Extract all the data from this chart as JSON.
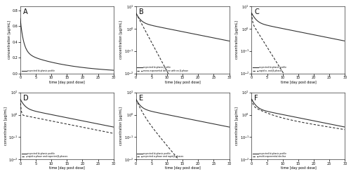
{
  "panels": [
    "A",
    "B",
    "C",
    "D",
    "E",
    "F"
  ],
  "t_max": 30,
  "xlabel": "time [day post dose]",
  "ylabel": "concentration [µg/mL]",
  "line_color": "#333333",
  "background": "#ffffff",
  "panel_params": {
    "A": {
      "title": "A",
      "ylog": false,
      "ylim": [
        0.0,
        0.85
      ],
      "yticks": [
        0.0,
        0.2,
        0.4,
        0.6,
        0.8
      ],
      "solid": {
        "Cl": 6.0,
        "V1": 40,
        "V2": 45,
        "Q": 18,
        "dose": 1,
        "scale": 0.033
      },
      "dashed": null,
      "legend": [
        "expected bi-phasic profile"
      ],
      "legend_loc": "lower left"
    },
    "B": {
      "title": "B",
      "ylog": true,
      "ylim_log": [
        -2,
        1
      ],
      "solid": {
        "Cl": 6.0,
        "V1": 40,
        "V2": 45,
        "Q": 18,
        "dose": 1,
        "scale": 1.0
      },
      "dashed": {
        "Cl": 6.0,
        "V1": 40,
        "V2": 0,
        "Q": 0,
        "dose": 1,
        "scale": 1.0,
        "mono": true,
        "mono_k": 0.8
      },
      "legend": [
        "expected bi-phasic profile",
        "mono-exponential decline with no β-phase"
      ],
      "legend_loc": "lower left"
    },
    "C": {
      "title": "C",
      "ylog": true,
      "ylim_log": [
        -2,
        1
      ],
      "solid": {
        "Cl": 6.0,
        "V1": 40,
        "V2": 45,
        "Q": 18,
        "dose": 1,
        "scale": 1.0
      },
      "dashed": {
        "Cl": 6.0,
        "V1": 40,
        "V2": 45,
        "Q": 18,
        "dose": 1,
        "scale": 1.0,
        "alpha_fast": 4.0,
        "beta_fast": 0.8
      },
      "legend": [
        "expected bi-phasic profile",
        "rapid α- and β-phases"
      ],
      "legend_loc": "lower left"
    },
    "D": {
      "title": "D",
      "ylog": true,
      "ylim_log": [
        -2,
        1
      ],
      "solid": {
        "Cl": 6.0,
        "V1": 40,
        "V2": 45,
        "Q": 18,
        "dose": 1,
        "scale": 1.0
      },
      "dashed": {
        "Cl": 6.0,
        "V1": 40,
        "V2": 45,
        "Q": 18,
        "dose": 1,
        "scale": 1.0,
        "alpha_fast": 4.0,
        "beta_same": true
      },
      "legend": [
        "expected bi-phasic profile",
        "rapid α-phase and expected β-phases"
      ],
      "legend_loc": "lower left"
    },
    "E": {
      "title": "E",
      "ylog": true,
      "ylim_log": [
        -2,
        1
      ],
      "solid": {
        "Cl": 6.0,
        "V1": 40,
        "V2": 45,
        "Q": 18,
        "dose": 1,
        "scale": 1.0
      },
      "dashed": {
        "Cl": 6.0,
        "V1": 40,
        "V2": 45,
        "Q": 18,
        "dose": 1,
        "scale": 1.0,
        "alpha_same": true,
        "beta_fast": 0.5
      },
      "legend": [
        "expected bi-phasic profile",
        "expected α-phase and rapid β-phases"
      ],
      "legend_loc": "lower left"
    },
    "F": {
      "title": "F",
      "ylog": true,
      "ylim_log": [
        -2,
        1
      ],
      "solid": {
        "Cl": 6.0,
        "V1": 40,
        "V2": 45,
        "Q": 18,
        "dose": 1,
        "scale": 1.0
      },
      "dashed": {
        "Cl": 6.0,
        "V1": 40,
        "V2": 45,
        "Q": 18,
        "dose": 1,
        "scale": 1.0,
        "multi": true
      },
      "legend": [
        "expected bi-phasic profile",
        "multi-exponential decline"
      ],
      "legend_loc": "lower left"
    }
  }
}
